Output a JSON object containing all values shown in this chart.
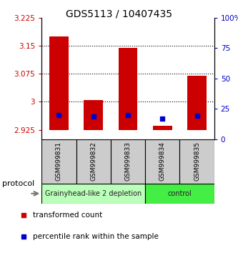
{
  "title": "GDS5113 / 10407435",
  "samples": [
    "GSM999831",
    "GSM999832",
    "GSM999833",
    "GSM999834",
    "GSM999835"
  ],
  "groups": [
    {
      "label": "Grainyhead-like 2 depletion",
      "samples": [
        0,
        1,
        2
      ],
      "color": "#bbffbb"
    },
    {
      "label": "control",
      "samples": [
        3,
        4
      ],
      "color": "#44ee44"
    }
  ],
  "red_bar_bottom": [
    2.925,
    2.925,
    2.925,
    2.925,
    2.925
  ],
  "red_bar_top": [
    3.175,
    3.005,
    3.145,
    2.935,
    3.07
  ],
  "blue_y": [
    2.965,
    2.96,
    2.965,
    2.955,
    2.963
  ],
  "blue_size": 4,
  "ylim_left": [
    2.9,
    3.225
  ],
  "ylim_right": [
    0,
    100
  ],
  "yticks_left": [
    2.925,
    3.0,
    3.075,
    3.15,
    3.225
  ],
  "yticks_right": [
    0,
    25,
    50,
    75,
    100
  ],
  "ytick_labels_left": [
    "2.925",
    "3",
    "3.075",
    "3.15",
    "3.225"
  ],
  "ytick_labels_right": [
    "0",
    "25",
    "50",
    "75",
    "100%"
  ],
  "hlines": [
    3.15,
    3.075,
    3.0
  ],
  "bar_color": "#cc0000",
  "blue_color": "#0000cc",
  "left_tick_color": "#cc0000",
  "right_tick_color": "#0000cc",
  "protocol_label": "protocol",
  "bg_color": "#ffffff",
  "sample_box_color": "#cccccc",
  "legend_red_label": "transformed count",
  "legend_blue_label": "percentile rank within the sample",
  "bar_width": 0.55
}
